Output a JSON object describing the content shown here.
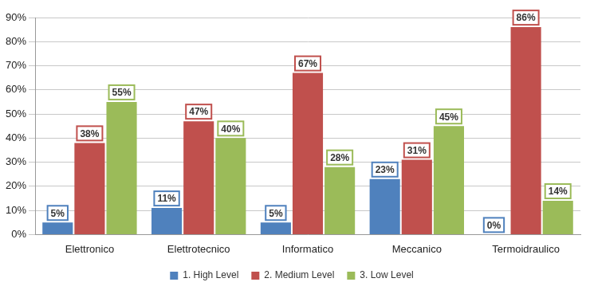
{
  "chart_data": {
    "type": "bar",
    "categories": [
      "Elettronico",
      "Elettrotecnico",
      "Informatico",
      "Meccanico",
      "Termoidraulico"
    ],
    "series": [
      {
        "name": "1. High Level",
        "color": "#4f81bd",
        "values": [
          5,
          11,
          5,
          23,
          0
        ],
        "value_labels": [
          "5%",
          "11%",
          "5%",
          "23%",
          "0%"
        ]
      },
      {
        "name": "2. Medium Level",
        "color": "#c0504d",
        "values": [
          38,
          47,
          67,
          31,
          86
        ],
        "value_labels": [
          "38%",
          "47%",
          "67%",
          "31%",
          "86%"
        ]
      },
      {
        "name": "3. Low Level",
        "color": "#9bbb59",
        "values": [
          55,
          40,
          28,
          45,
          14
        ],
        "value_labels": [
          "55%",
          "40%",
          "28%",
          "45%",
          "14%"
        ]
      }
    ],
    "ylim": [
      0,
      90
    ],
    "yticks": [
      {
        "value": 0,
        "label": "0%"
      },
      {
        "value": 10,
        "label": "10%"
      },
      {
        "value": 20,
        "label": "20%"
      },
      {
        "value": 30,
        "label": "30%"
      },
      {
        "value": 40,
        "label": "40%"
      },
      {
        "value": 50,
        "label": "50%"
      },
      {
        "value": 60,
        "label": "60%"
      },
      {
        "value": 70,
        "label": "70%"
      },
      {
        "value": 80,
        "label": "80%"
      },
      {
        "value": 90,
        "label": "90%"
      }
    ],
    "grid": true,
    "legend": "bottom",
    "data_labels": true
  }
}
